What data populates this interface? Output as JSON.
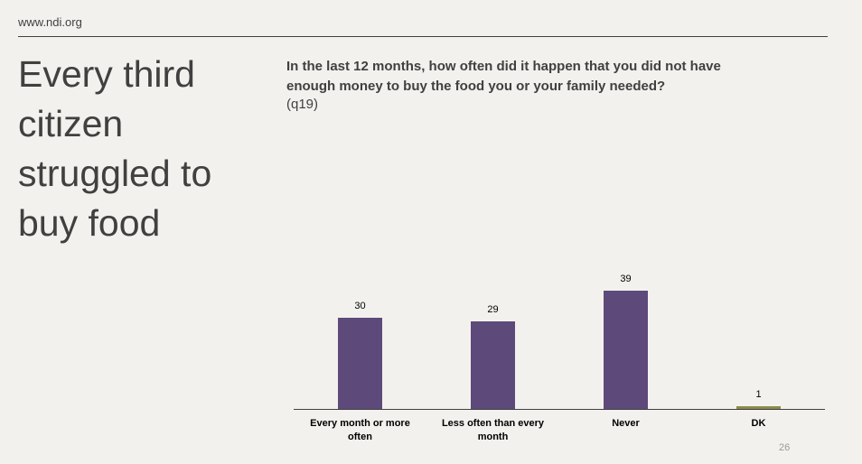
{
  "header": {
    "site": "www.ndi.org"
  },
  "headline": "Every third citizen struggled to buy food",
  "page_number": "26",
  "chart_data": {
    "type": "bar",
    "title": "In the last 12 months, how often did it happen that you did not have enough money to buy the food you or your family needed?",
    "subtitle": "(q19)",
    "categories": [
      "Every month or more often",
      "Less often than every month",
      "Never",
      "DK"
    ],
    "values": [
      30,
      29,
      39,
      1
    ],
    "colors": [
      "#5e4a7a",
      "#5e4a7a",
      "#5e4a7a",
      "#8c8a4a"
    ]
  }
}
